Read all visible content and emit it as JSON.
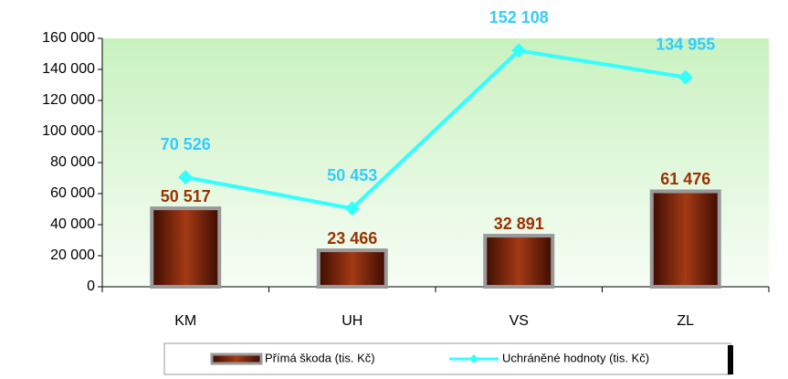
{
  "chart_data": {
    "type": "bar",
    "categories": [
      "KM",
      "UH",
      "VS",
      "ZL"
    ],
    "series": [
      {
        "name": "Přímá škoda (tis. Kč)",
        "type": "bar",
        "color": "#7a1e08",
        "values": [
          50517,
          23466,
          32891,
          61476
        ],
        "value_labels": [
          "50 517",
          "23 466",
          "32 891",
          "61 476"
        ],
        "label_color": "#993300"
      },
      {
        "name": "Uchráněné hodnoty (tis. Kč)",
        "type": "line",
        "color": "#33ffff",
        "values": [
          70526,
          50453,
          152108,
          134955
        ],
        "value_labels": [
          "70 526",
          "50 453",
          "152 108",
          "134 955"
        ],
        "label_color": "#33ccff"
      }
    ],
    "ylim": [
      0,
      160000
    ],
    "yticks": [
      {
        "value": 0,
        "label": "0"
      },
      {
        "value": 20000,
        "label": "20 000"
      },
      {
        "value": 40000,
        "label": "40 000"
      },
      {
        "value": 60000,
        "label": "60 000"
      },
      {
        "value": 80000,
        "label": "80 000"
      },
      {
        "value": 100000,
        "label": "100 000"
      },
      {
        "value": 120000,
        "label": "120 000"
      },
      {
        "value": 140000,
        "label": "140 000"
      },
      {
        "value": 160000,
        "label": "160 000"
      }
    ],
    "legend": "bottom"
  }
}
